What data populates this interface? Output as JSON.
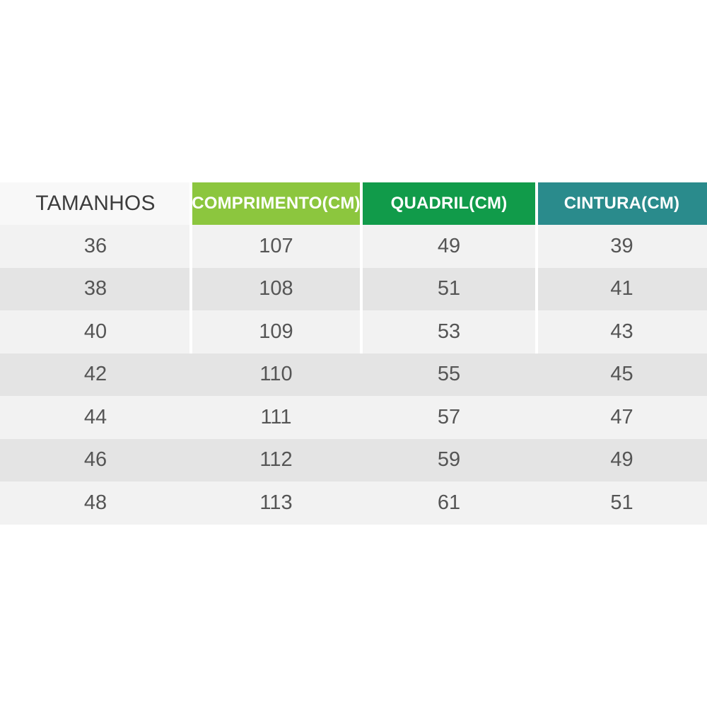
{
  "table": {
    "headers": [
      "TAMANHOS",
      "COMPRIMENTO(CM)",
      "QUADRIL(CM)",
      "CINTURA(CM)"
    ],
    "rows": [
      [
        "36",
        "107",
        "49",
        "39"
      ],
      [
        "38",
        "108",
        "51",
        "41"
      ],
      [
        "40",
        "109",
        "53",
        "43"
      ],
      [
        "42",
        "110",
        "55",
        "45"
      ],
      [
        "44",
        "111",
        "57",
        "47"
      ],
      [
        "46",
        "112",
        "59",
        "49"
      ],
      [
        "48",
        "113",
        "61",
        "51"
      ]
    ]
  },
  "colors": {
    "lime": "#8CC63E",
    "green": "#119B4A",
    "teal": "#2A8B8C",
    "header_light_bg": "#F8F8F8",
    "header_dark_text": "#3D3D3D",
    "header_white_text": "#FFFFFF",
    "row_light": "#F2F2F2",
    "row_dark": "#E4E4E4",
    "cell_text": "#555555"
  },
  "chart_data": {
    "type": "table",
    "title": "",
    "columns": [
      "TAMANHOS",
      "COMPRIMENTO(CM)",
      "QUADRIL(CM)",
      "CINTURA(CM)"
    ],
    "rows": [
      [
        36,
        107,
        49,
        39
      ],
      [
        38,
        108,
        51,
        41
      ],
      [
        40,
        109,
        53,
        43
      ],
      [
        42,
        110,
        55,
        45
      ],
      [
        44,
        111,
        57,
        47
      ],
      [
        46,
        112,
        59,
        49
      ],
      [
        48,
        113,
        61,
        51
      ]
    ]
  }
}
